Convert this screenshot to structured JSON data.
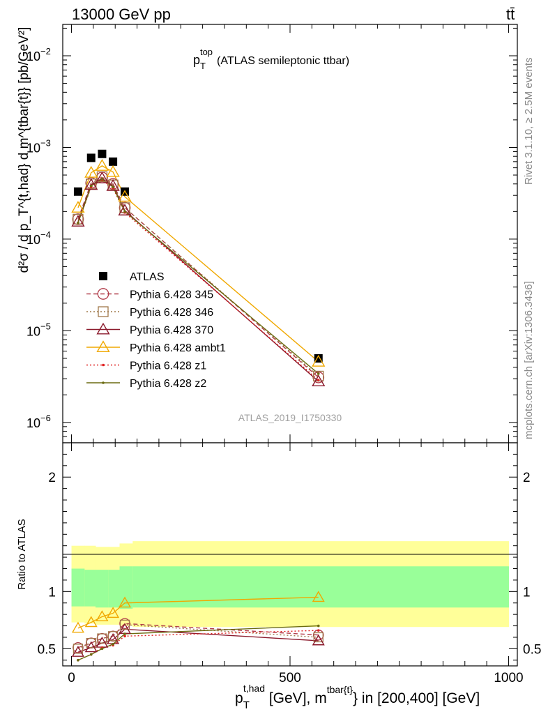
{
  "header": {
    "energy_label": "13000 GeV pp",
    "process_label": "tt̄"
  },
  "side_labels": {
    "rivet": "Rivet 3.1.10, ≥ 2.5M events",
    "mcplots": "mcplots.cern.ch [arXiv:1306.3436]"
  },
  "chart_data": [
    {
      "type": "line",
      "panel": "main",
      "title": "p_T^top (ATLAS semileptonic ttbar)",
      "title_parts": {
        "main": "p",
        "sub": "T",
        "sup": "top",
        "rest": "(ATLAS semileptonic ttbar)"
      },
      "ylabel": "d²σ / d p_T^{t,had} d m^{tbar{t}} [pb/GeV²]",
      "yscale": "log",
      "ylim": [
        6e-07,
        0.022
      ],
      "xlim": [
        -20,
        1020
      ],
      "y_ticks": [
        {
          "value": 0.01,
          "base": "10",
          "exp": "−2"
        },
        {
          "value": 0.001,
          "base": "10",
          "exp": "−3"
        },
        {
          "value": 0.0001,
          "base": "10",
          "exp": "−4"
        },
        {
          "value": 1e-05,
          "base": "10",
          "exp": "−5"
        },
        {
          "value": 1e-06,
          "base": "10",
          "exp": "−6"
        }
      ],
      "watermark": "ATLAS_2019_I1750330",
      "legend_position": "center-left",
      "x": [
        15,
        45,
        70,
        95,
        122,
        565
      ],
      "series": [
        {
          "name": "ATLAS",
          "color": "#000000",
          "marker": "square-filled",
          "line": "none",
          "values": [
            0.00033,
            0.00077,
            0.00085,
            0.0007,
            0.00033,
            5e-06
          ]
        },
        {
          "name": "Pythia 6.428 345",
          "color": "#b03a48",
          "marker": "circle-open",
          "line": "dashed",
          "values": [
            0.000165,
            0.00041,
            0.00047,
            0.0004,
            0.00022,
            3.1e-06
          ]
        },
        {
          "name": "Pythia 6.428 346",
          "color": "#a0784a",
          "marker": "square-open",
          "line": "dotted",
          "values": [
            0.000165,
            0.0004,
            0.00048,
            0.00039,
            0.00022,
            3.2e-06
          ]
        },
        {
          "name": "Pythia 6.428 370",
          "color": "#8b1a2c",
          "marker": "triangle-open",
          "line": "solid",
          "values": [
            0.000155,
            0.00039,
            0.00046,
            0.00038,
            0.000205,
            2.8e-06
          ]
        },
        {
          "name": "Pythia 6.428 ambt1",
          "color": "#f0a800",
          "marker": "triangle-open",
          "line": "solid",
          "values": [
            0.00022,
            0.00053,
            0.00063,
            0.00054,
            0.00029,
            4.6e-06
          ]
        },
        {
          "name": "Pythia 6.428 z1",
          "color": "#e02020",
          "marker": "dot",
          "line": "dotted",
          "values": [
            0.00015,
            0.00037,
            0.00044,
            0.00036,
            0.000195,
            2.9e-06
          ]
        },
        {
          "name": "Pythia 6.428 z2",
          "color": "#6b6b10",
          "marker": "dot",
          "line": "solid",
          "values": [
            0.00015,
            0.00038,
            0.00045,
            0.00037,
            0.0002,
            3.4e-06
          ]
        }
      ]
    },
    {
      "type": "line",
      "panel": "ratio",
      "ylabel": "Ratio to ATLAS",
      "ylim": [
        0.35,
        2.3
      ],
      "xlim": [
        -20,
        1020
      ],
      "xlabel_parts": {
        "p": "p",
        "sub": "T",
        "sup": "t,had",
        "mid": " [GeV], m",
        "sup2": "tbar{t}",
        "end": "} in [200,400] [GeV]"
      },
      "y_ticks": [
        {
          "value": 0.5,
          "label": "0.5"
        },
        {
          "value": 1,
          "label": "1"
        },
        {
          "value": 2,
          "label": "2"
        }
      ],
      "x_ticks": [
        {
          "value": 0,
          "label": "0"
        },
        {
          "value": 500,
          "label": "500"
        },
        {
          "value": 1000,
          "label": "1000"
        }
      ],
      "bands": {
        "edges": [
          0,
          30,
          55,
          85,
          110,
          140,
          1000
        ],
        "yellow": [
          [
            0.73,
            1.4
          ],
          [
            0.72,
            1.4
          ],
          [
            0.71,
            1.39
          ],
          [
            0.71,
            1.39
          ],
          [
            0.7,
            1.42
          ],
          [
            0.69,
            1.44
          ]
        ],
        "yellow_color": "#ffff99",
        "green": [
          [
            0.87,
            1.2
          ],
          [
            0.87,
            1.19
          ],
          [
            0.86,
            1.19
          ],
          [
            0.86,
            1.19
          ],
          [
            0.85,
            1.22
          ],
          [
            0.86,
            1.22
          ]
        ],
        "green_color": "#99ff99"
      },
      "x": [
        15,
        45,
        70,
        95,
        122,
        565
      ],
      "series": [
        {
          "name": "Pythia 6.428 345",
          "values": [
            0.51,
            0.55,
            0.59,
            0.61,
            0.72,
            0.62
          ]
        },
        {
          "name": "Pythia 6.428 346",
          "values": [
            0.5,
            0.55,
            0.59,
            0.61,
            0.71,
            0.6
          ]
        },
        {
          "name": "Pythia 6.428 370",
          "values": [
            0.47,
            0.51,
            0.55,
            0.58,
            0.67,
            0.57
          ]
        },
        {
          "name": "Pythia 6.428 ambt1",
          "values": [
            0.68,
            0.73,
            0.78,
            0.81,
            0.9,
            0.95
          ]
        },
        {
          "name": "Pythia 6.428 z1",
          "values": [
            0.4,
            0.45,
            0.51,
            0.53,
            0.61,
            0.66
          ]
        },
        {
          "name": "Pythia 6.428 z2",
          "values": [
            0.4,
            0.45,
            0.5,
            0.54,
            0.63,
            0.7
          ]
        }
      ]
    }
  ]
}
